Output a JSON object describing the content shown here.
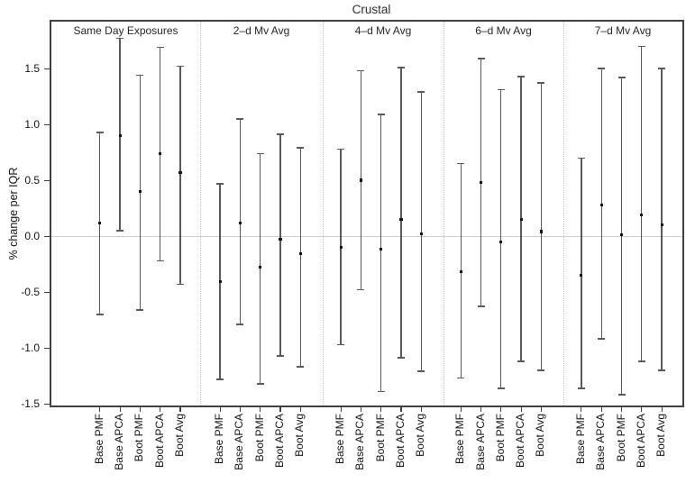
{
  "chart_data": {
    "type": "errorbar",
    "title": "Crustal",
    "ylabel": "% change per IQR",
    "xlabel": "",
    "ylim": [
      -1.52,
      1.92
    ],
    "yticks": [
      1.5,
      1.0,
      0.5,
      0.0,
      -0.5,
      -1.0,
      -1.5
    ],
    "ytick_labels": [
      "1.5",
      "1.0",
      "0.5",
      "0.0",
      "-0.5",
      "-1.0",
      "-1.5"
    ],
    "grid": false,
    "legend": "none",
    "zero_reference_line": 0.0,
    "categories": [
      "Base PMF",
      "Base APCA",
      "Boot PMF",
      "Boot APCA",
      "Boot Avg"
    ],
    "panels": [
      {
        "label": "Same Day Exposures",
        "estimates": [
          0.12,
          0.9,
          0.4,
          0.74,
          0.57
        ],
        "ci_low": [
          -0.7,
          0.05,
          -0.66,
          -0.22,
          -0.43
        ],
        "ci_high": [
          0.93,
          1.77,
          1.44,
          1.69,
          1.52
        ]
      },
      {
        "label": "2–d Mv Avg",
        "estimates": [
          -0.41,
          0.12,
          -0.28,
          -0.03,
          -0.16
        ],
        "ci_low": [
          -1.28,
          -0.79,
          -1.32,
          -1.07,
          -1.17
        ],
        "ci_high": [
          0.47,
          1.05,
          0.74,
          0.91,
          0.79
        ]
      },
      {
        "label": "4–d Mv Avg",
        "estimates": [
          -0.1,
          0.5,
          -0.12,
          0.15,
          0.02
        ],
        "ci_low": [
          -0.97,
          -0.48,
          -1.39,
          -1.09,
          -1.21
        ],
        "ci_high": [
          0.78,
          1.48,
          1.09,
          1.51,
          1.29
        ]
      },
      {
        "label": "6–d Mv Avg",
        "estimates": [
          -0.32,
          0.48,
          -0.05,
          0.15,
          0.04
        ],
        "ci_low": [
          -1.27,
          -0.63,
          -1.36,
          -1.12,
          -1.2
        ],
        "ci_high": [
          0.65,
          1.59,
          1.31,
          1.43,
          1.37
        ]
      },
      {
        "label": "7–d Mv Avg",
        "estimates": [
          -0.35,
          0.28,
          0.01,
          0.19,
          0.1
        ],
        "ci_low": [
          -1.36,
          -0.92,
          -1.42,
          -1.12,
          -1.2
        ],
        "ci_high": [
          0.7,
          1.5,
          1.42,
          1.7,
          1.5
        ]
      }
    ],
    "colors": {
      "errorbar": "#5a5a5a",
      "point": "#151515",
      "zero_line": "#cccccc",
      "separator": "#bfbfbf",
      "frame": "#3f3f3f",
      "text": "#141414",
      "background": "#ffffff"
    }
  }
}
